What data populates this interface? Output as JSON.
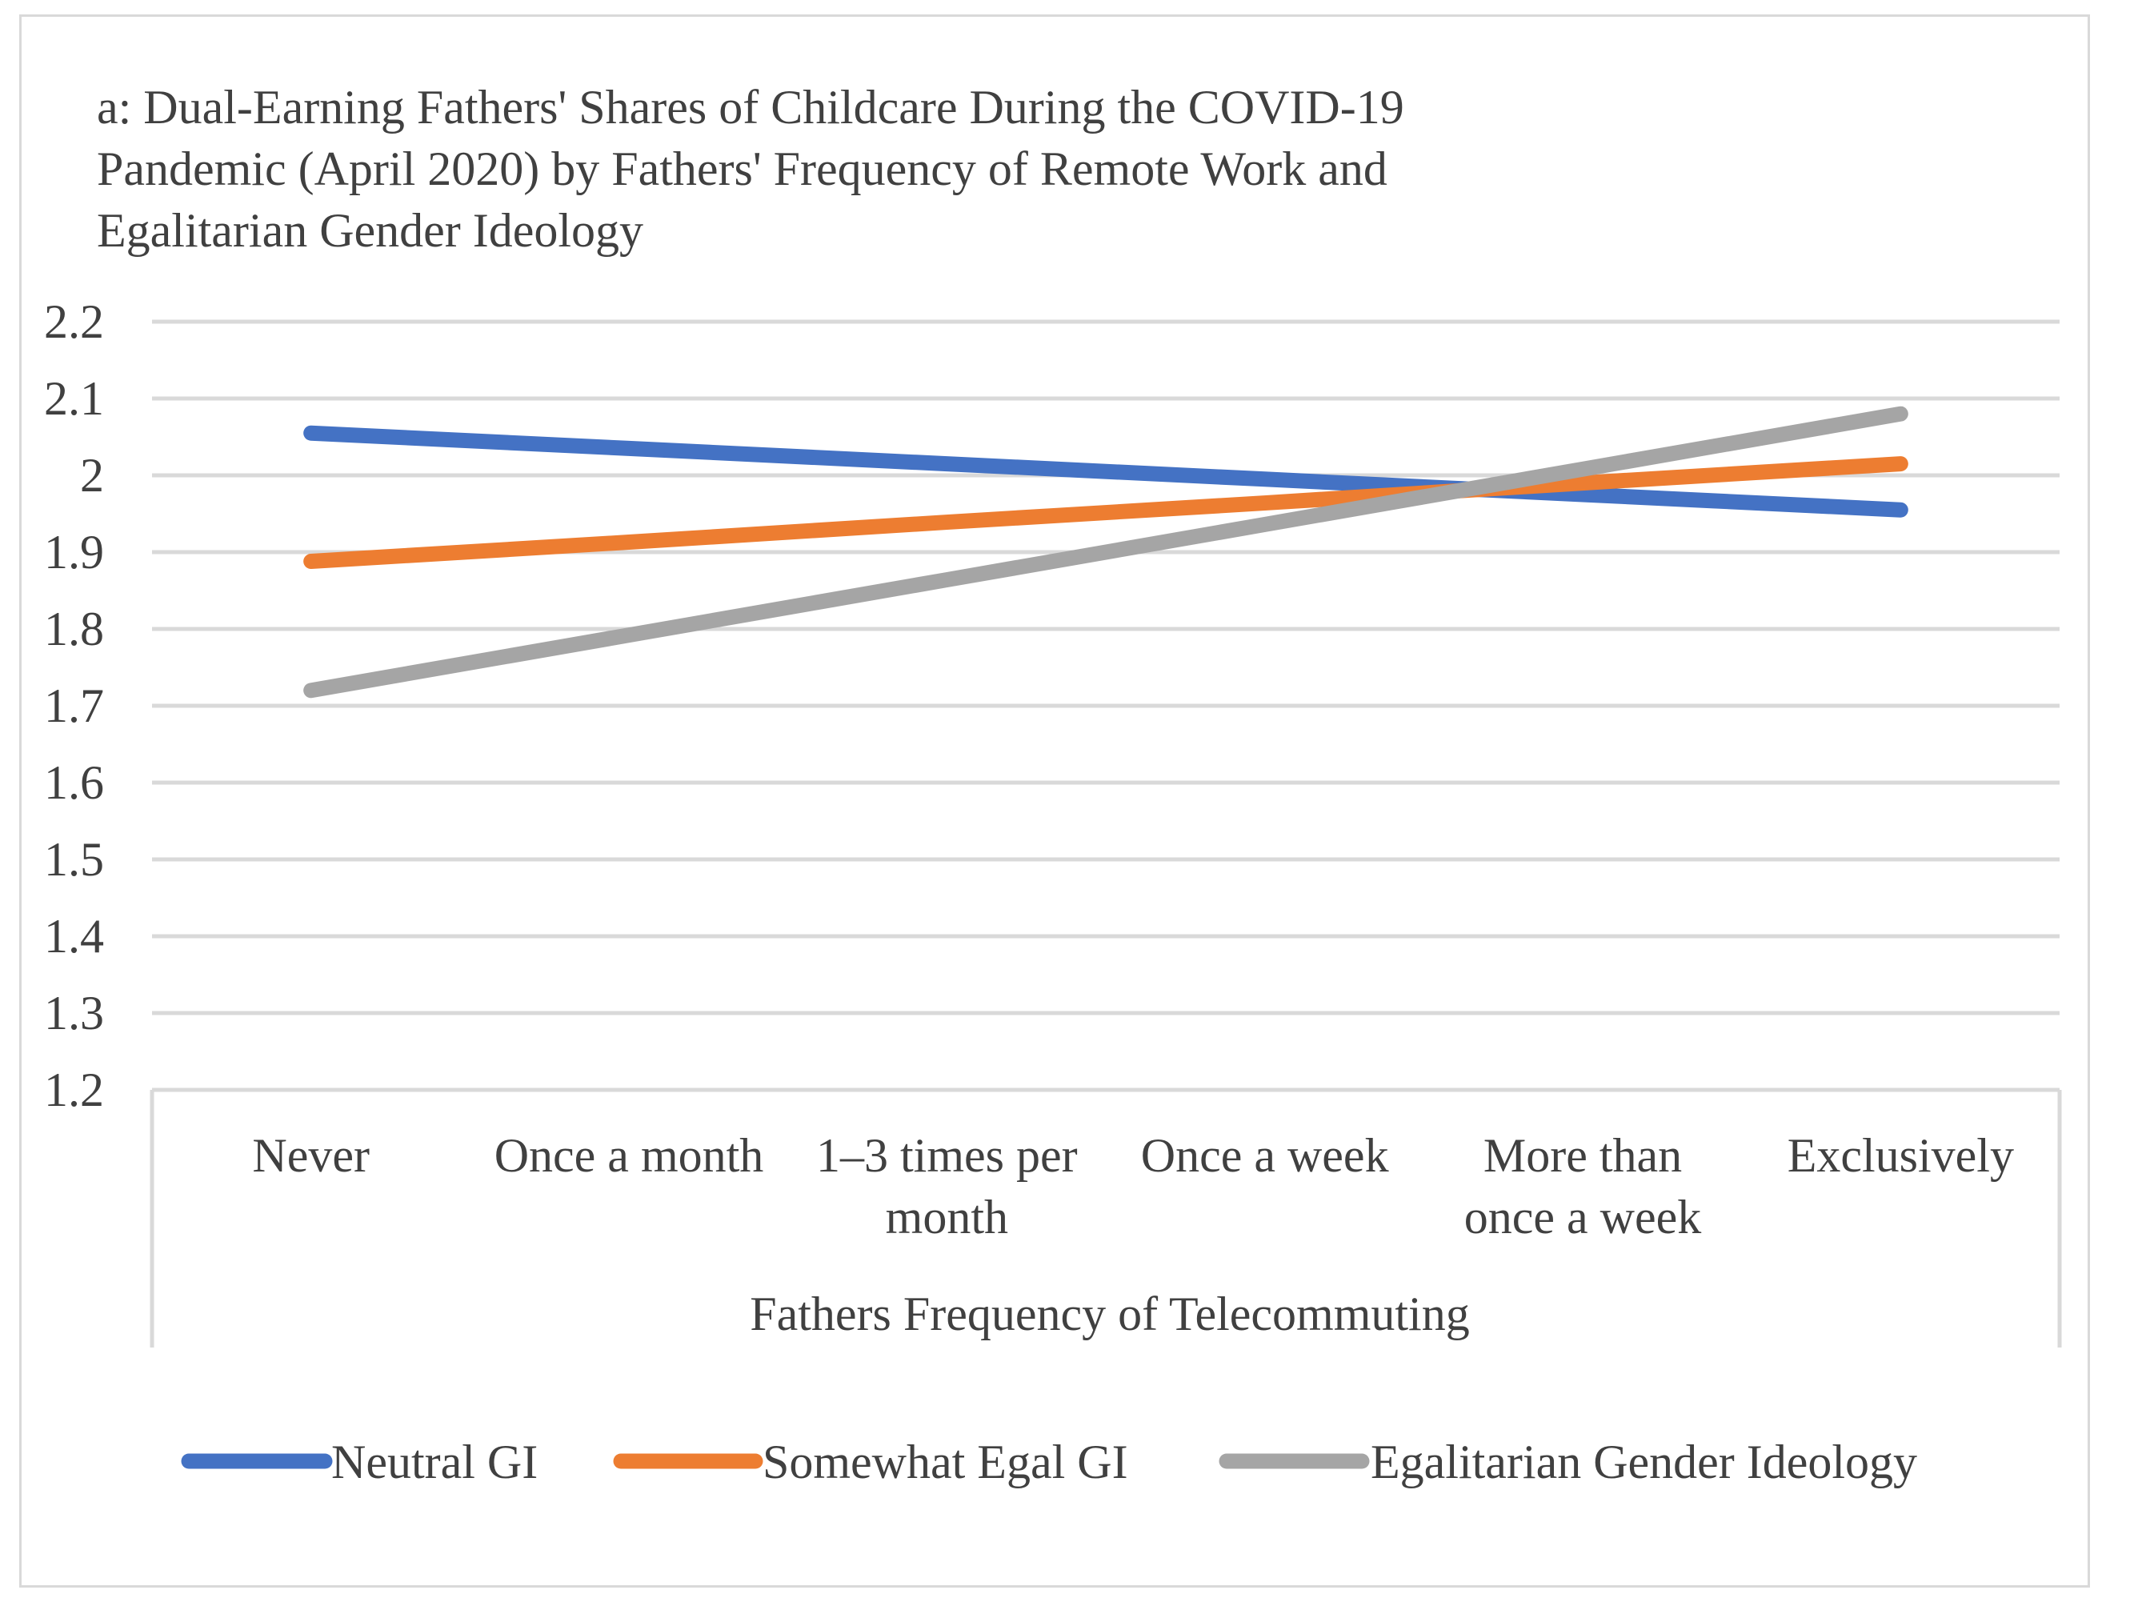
{
  "chart_data": {
    "type": "line",
    "title": "a: Dual-Earning Fathers' Shares of Childcare During the COVID-19 Pandemic (April 2020) by Fathers' Frequency of Remote Work and Egalitarian Gender Ideology",
    "title_lines": [
      "a: Dual-Earning Fathers' Shares of Childcare During the COVID-19",
      "Pandemic (April 2020) by Fathers' Frequency of Remote Work and",
      "Egalitarian Gender Ideology"
    ],
    "xlabel": "Fathers Frequency of Telecommuting",
    "ylabel": "",
    "categories": [
      "Never",
      "Once a month",
      "1–3 times per month",
      "Once a week",
      "More than once a week",
      "Exclusively"
    ],
    "category_lines": [
      [
        "Never"
      ],
      [
        "Once a month"
      ],
      [
        "1–3 times per",
        "month"
      ],
      [
        "Once a week"
      ],
      [
        "More than",
        "once a week"
      ],
      [
        "Exclusively"
      ]
    ],
    "ylim": [
      1.2,
      2.2
    ],
    "yticks": [
      "1.2",
      "1.3",
      "1.4",
      "1.5",
      "1.6",
      "1.7",
      "1.8",
      "1.9",
      "2",
      "2.1",
      "2.2"
    ],
    "grid": true,
    "legend_position": "bottom",
    "series": [
      {
        "name": "Neutral GI",
        "color": "#4472c4",
        "values": [
          2.055,
          2.035,
          2.015,
          1.995,
          1.975,
          1.955
        ]
      },
      {
        "name": "Somewhat Egal GI",
        "color": "#ed7d31",
        "values": [
          1.888,
          1.913,
          1.939,
          1.964,
          1.99,
          2.015
        ]
      },
      {
        "name": "Egalitarian Gender Ideology",
        "color": "#a5a5a5",
        "values": [
          1.72,
          1.792,
          1.864,
          1.936,
          2.008,
          2.08
        ]
      }
    ]
  }
}
